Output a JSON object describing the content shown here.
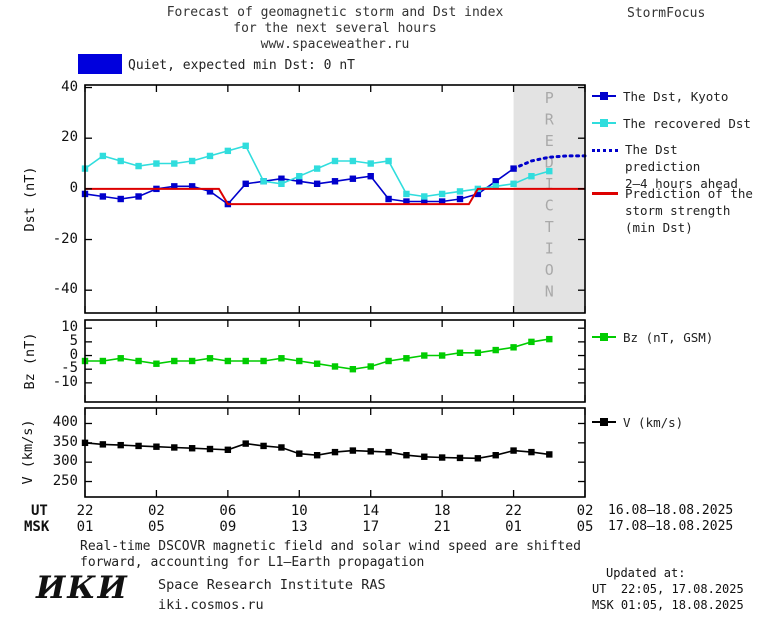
{
  "header": {
    "title_line1": "Forecast of geomagnetic storm and Dst index",
    "title_line2": "for the next several hours",
    "title_line3": "www.spaceweather.ru",
    "brand": "StormFocus"
  },
  "status_banner": {
    "label": "Quiet, expected min Dst: 0 nT",
    "swatch_color": "#0000dd"
  },
  "legend": {
    "dst_kyoto": "The Dst, Kyoto",
    "recovered": "The recovered Dst",
    "prediction_line1": "The Dst prediction",
    "prediction_line2": "2–4 hours ahead",
    "storm_line1": "Prediction of the",
    "storm_line2": "storm strength",
    "storm_line3": "(min Dst)",
    "bz": "Bz (nT, GSM)",
    "v": "V (km/s)"
  },
  "axes": {
    "ut_label": "UT",
    "msk_label": "MSK",
    "ut_ticks": [
      "22",
      "02",
      "06",
      "10",
      "14",
      "18",
      "22",
      "02"
    ],
    "msk_ticks": [
      "01",
      "05",
      "09",
      "13",
      "17",
      "21",
      "01",
      "05"
    ],
    "ut_daterange": "16.08–18.08.2025",
    "msk_daterange": "17.08–18.08.2025",
    "prediction_watermark": "PREDICTION"
  },
  "footer": {
    "note_line1": "Real-time DSCOVR magnetic field and solar wind speed are shifted",
    "note_line2": "forward, accounting for L1–Earth propagation",
    "updated_label": "Updated at:",
    "updated_ut": "UT  22:05, 17.08.2025",
    "updated_msk": "MSK 01:05, 18.08.2025",
    "logo": "ИКИ",
    "institute": "Space Research Institute RAS",
    "site": "iki.cosmos.ru"
  },
  "chart_data": [
    {
      "id": "dst",
      "type": "line",
      "ylabel": "Dst (nT)",
      "xlim": [
        0,
        28
      ],
      "ylim": [
        -49,
        41
      ],
      "xticks": [
        0,
        4,
        8,
        12,
        16,
        20,
        24,
        28
      ],
      "yticks": [
        -40,
        -20,
        0,
        20,
        40
      ],
      "prediction_region": [
        24,
        28
      ],
      "series": [
        {
          "id": "dst-kyoto",
          "name": "The Dst, Kyoto",
          "color": "#0000cc",
          "marker": "square",
          "x": [
            0,
            1,
            2,
            3,
            4,
            5,
            6,
            7,
            8,
            9,
            10,
            11,
            12,
            13,
            14,
            15,
            16,
            17,
            18,
            19,
            20,
            21,
            22,
            23,
            24
          ],
          "values": [
            -2,
            -3,
            -4,
            -3,
            0,
            1,
            1,
            -1,
            -6,
            2,
            3,
            4,
            3,
            2,
            3,
            4,
            5,
            -4,
            -5,
            -5,
            -5,
            -4,
            -2,
            3,
            8
          ]
        },
        {
          "id": "recovered-dst",
          "name": "The recovered Dst",
          "color": "#30dddd",
          "marker": "square",
          "x": [
            0,
            1,
            2,
            3,
            4,
            5,
            6,
            7,
            8,
            9,
            10,
            11,
            12,
            13,
            14,
            15,
            16,
            17,
            18,
            19,
            20,
            21,
            22,
            23,
            24,
            25,
            26
          ],
          "values": [
            8,
            13,
            11,
            9,
            10,
            10,
            11,
            13,
            15,
            17,
            3,
            2,
            5,
            8,
            11,
            11,
            10,
            11,
            -2,
            -3,
            -2,
            -1,
            0,
            1,
            2,
            5,
            7
          ]
        },
        {
          "id": "dst-prediction",
          "name": "The Dst prediction 2–4 hours ahead",
          "color": "#0000cc",
          "style": "dotted",
          "x": [
            24,
            25,
            26,
            27,
            28
          ],
          "values": [
            8,
            11,
            12.5,
            13,
            13
          ]
        },
        {
          "id": "storm-strength",
          "name": "Prediction of the storm strength (min Dst)",
          "color": "#dd0000",
          "width": 2,
          "x": [
            0,
            7.5,
            8,
            21.5,
            22,
            28
          ],
          "values": [
            0,
            0,
            -6,
            -6,
            0,
            0
          ]
        }
      ]
    },
    {
      "id": "bz",
      "type": "line",
      "ylabel": "Bz (nT)",
      "xlim": [
        0,
        28
      ],
      "ylim": [
        -17,
        13
      ],
      "xticks": [
        0,
        4,
        8,
        12,
        16,
        20,
        24,
        28
      ],
      "yticks": [
        -10,
        -5,
        0,
        5,
        10
      ],
      "series": [
        {
          "id": "bz-gsm",
          "name": "Bz (nT, GSM)",
          "color": "#00cc00",
          "marker": "square",
          "x": [
            0,
            1,
            2,
            3,
            4,
            5,
            6,
            7,
            8,
            9,
            10,
            11,
            12,
            13,
            14,
            15,
            16,
            17,
            18,
            19,
            20,
            21,
            22,
            23,
            24,
            25,
            26
          ],
          "values": [
            -2,
            -2,
            -1,
            -2,
            -3,
            -2,
            -2,
            -1,
            -2,
            -2,
            -2,
            -1,
            -2,
            -3,
            -4,
            -5,
            -4,
            -2,
            -1,
            0,
            0,
            1,
            1,
            2,
            3,
            5,
            6
          ]
        }
      ]
    },
    {
      "id": "v",
      "type": "line",
      "ylabel": "V (km/s)",
      "xlim": [
        0,
        28
      ],
      "ylim": [
        210,
        440
      ],
      "xticks": [
        0,
        4,
        8,
        12,
        16,
        20,
        24,
        28
      ],
      "yticks": [
        250,
        300,
        350,
        400
      ],
      "series": [
        {
          "id": "v-solar-wind",
          "name": "V (km/s)",
          "color": "#000000",
          "marker": "square",
          "x": [
            0,
            1,
            2,
            3,
            4,
            5,
            6,
            7,
            8,
            9,
            10,
            11,
            12,
            13,
            14,
            15,
            16,
            17,
            18,
            19,
            20,
            21,
            22,
            23,
            24,
            25,
            26
          ],
          "values": [
            350,
            346,
            344,
            342,
            340,
            338,
            336,
            334,
            332,
            348,
            342,
            338,
            322,
            318,
            326,
            330,
            328,
            326,
            318,
            314,
            312,
            311,
            310,
            318,
            330,
            326,
            320
          ]
        }
      ]
    }
  ]
}
